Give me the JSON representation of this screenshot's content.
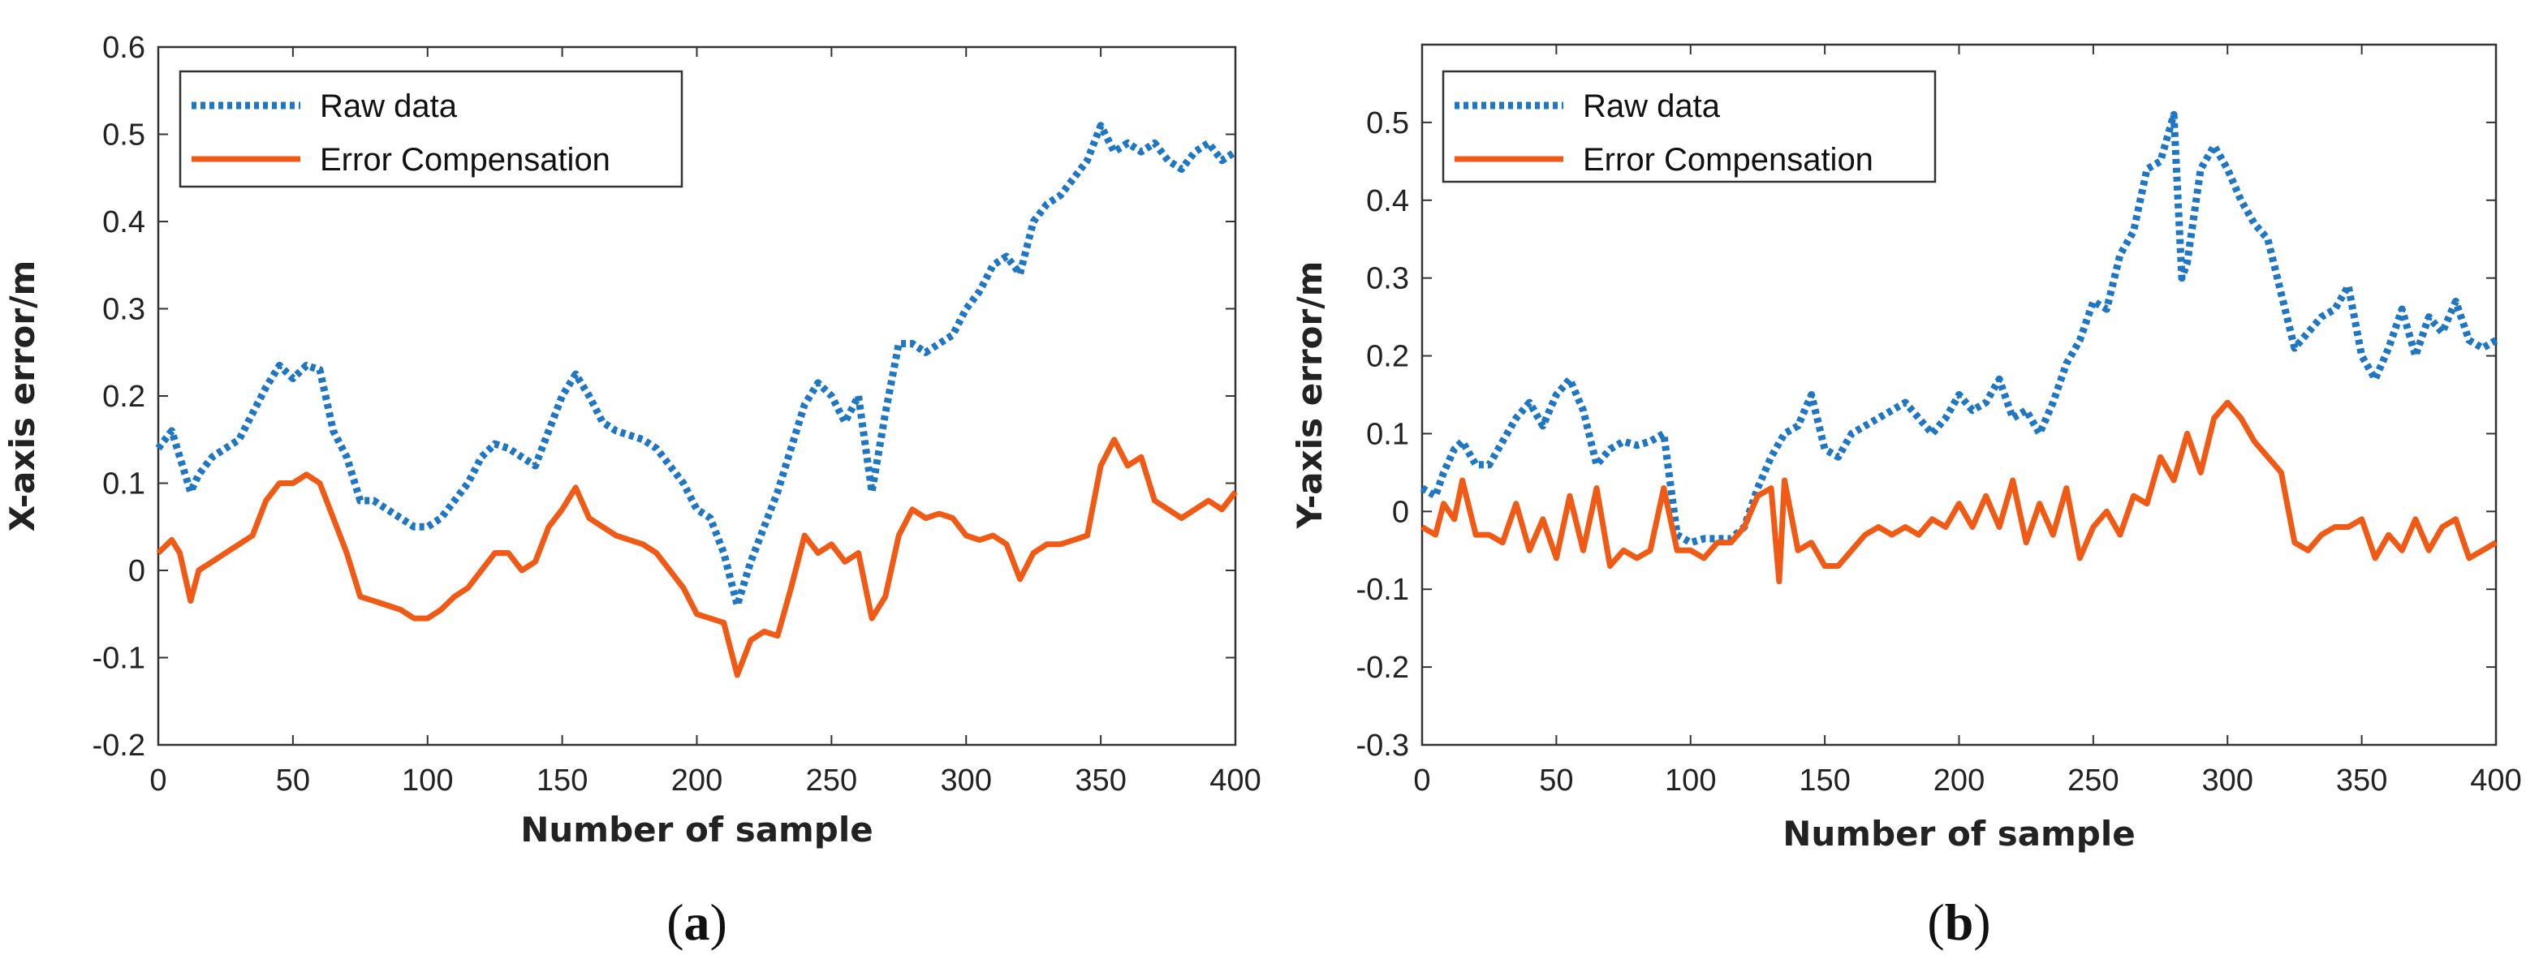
{
  "colors": {
    "raw": "#1f77c4",
    "comp": "#f05a14",
    "axis": "#333333",
    "text": "#222222"
  },
  "chart_data": [
    {
      "type": "line",
      "panel_label": {
        "open": "(",
        "letter": "a",
        "close": ")"
      },
      "xlabel": "Number of sample",
      "ylabel": "X-axis error/m",
      "xlim": [
        0,
        400
      ],
      "ylim": [
        -0.2,
        0.6
      ],
      "xticks": [
        0,
        50,
        100,
        150,
        200,
        250,
        300,
        350,
        400
      ],
      "xtick_labels": [
        "0",
        "50",
        "100",
        "150",
        "200",
        "250",
        "300",
        "350",
        "400"
      ],
      "yticks": [
        -0.2,
        -0.1,
        0,
        0.1,
        0.2,
        0.3,
        0.4,
        0.5,
        0.6
      ],
      "ytick_labels": [
        "-0.2",
        "-0.1",
        "0",
        "0.1",
        "0.2",
        "0.3",
        "0.4",
        "0.5",
        "0.6"
      ],
      "grid": false,
      "legend_position": "top-left",
      "series": [
        {
          "name": "Raw data",
          "style": "dotted",
          "x": [
            0,
            5,
            8,
            12,
            15,
            20,
            25,
            30,
            35,
            40,
            45,
            50,
            55,
            60,
            65,
            70,
            75,
            80,
            85,
            90,
            95,
            100,
            105,
            110,
            115,
            120,
            125,
            130,
            135,
            140,
            145,
            150,
            155,
            160,
            165,
            170,
            175,
            180,
            185,
            190,
            195,
            200,
            205,
            210,
            215,
            220,
            225,
            230,
            235,
            240,
            245,
            250,
            255,
            260,
            265,
            270,
            275,
            280,
            285,
            290,
            295,
            300,
            305,
            310,
            315,
            320,
            325,
            330,
            335,
            340,
            345,
            350,
            355,
            360,
            365,
            370,
            375,
            380,
            385,
            390,
            395,
            400
          ],
          "values": [
            0.14,
            0.16,
            0.13,
            0.09,
            0.11,
            0.13,
            0.14,
            0.15,
            0.18,
            0.21,
            0.235,
            0.22,
            0.235,
            0.23,
            0.16,
            0.13,
            0.08,
            0.08,
            0.07,
            0.06,
            0.05,
            0.05,
            0.06,
            0.08,
            0.1,
            0.13,
            0.145,
            0.14,
            0.13,
            0.12,
            0.16,
            0.2,
            0.225,
            0.2,
            0.17,
            0.16,
            0.155,
            0.15,
            0.14,
            0.12,
            0.1,
            0.07,
            0.06,
            0.02,
            -0.04,
            0.01,
            0.05,
            0.09,
            0.14,
            0.19,
            0.215,
            0.2,
            0.17,
            0.2,
            0.09,
            0.18,
            0.26,
            0.26,
            0.25,
            0.26,
            0.27,
            0.3,
            0.32,
            0.35,
            0.36,
            0.34,
            0.4,
            0.42,
            0.43,
            0.45,
            0.47,
            0.51,
            0.48,
            0.49,
            0.48,
            0.49,
            0.47,
            0.46,
            0.48,
            0.49,
            0.47,
            0.48
          ]
        },
        {
          "name": " Error Compensation",
          "style": "solid",
          "x": [
            0,
            5,
            8,
            12,
            15,
            20,
            25,
            30,
            35,
            40,
            45,
            50,
            55,
            60,
            65,
            70,
            75,
            80,
            85,
            90,
            95,
            100,
            105,
            110,
            115,
            120,
            125,
            130,
            135,
            140,
            145,
            150,
            155,
            160,
            165,
            170,
            175,
            180,
            185,
            190,
            195,
            200,
            205,
            210,
            215,
            220,
            225,
            230,
            235,
            240,
            245,
            250,
            255,
            260,
            265,
            270,
            275,
            280,
            285,
            290,
            295,
            300,
            305,
            310,
            315,
            320,
            325,
            330,
            335,
            340,
            345,
            350,
            355,
            360,
            365,
            370,
            375,
            380,
            385,
            390,
            395,
            400
          ],
          "values": [
            0.02,
            0.035,
            0.02,
            -0.035,
            0,
            0.01,
            0.02,
            0.03,
            0.04,
            0.08,
            0.1,
            0.1,
            0.11,
            0.1,
            0.06,
            0.02,
            -0.03,
            -0.035,
            -0.04,
            -0.045,
            -0.055,
            -0.055,
            -0.045,
            -0.03,
            -0.02,
            0,
            0.02,
            0.02,
            0,
            0.01,
            0.05,
            0.07,
            0.095,
            0.06,
            0.05,
            0.04,
            0.035,
            0.03,
            0.02,
            0,
            -0.02,
            -0.05,
            -0.055,
            -0.06,
            -0.12,
            -0.08,
            -0.07,
            -0.075,
            -0.02,
            0.04,
            0.02,
            0.03,
            0.01,
            0.02,
            -0.055,
            -0.03,
            0.04,
            0.07,
            0.06,
            0.065,
            0.06,
            0.04,
            0.035,
            0.04,
            0.03,
            -0.01,
            0.02,
            0.03,
            0.03,
            0.035,
            0.04,
            0.12,
            0.15,
            0.12,
            0.13,
            0.08,
            0.07,
            0.06,
            0.07,
            0.08,
            0.07,
            0.09
          ]
        }
      ]
    },
    {
      "type": "line",
      "panel_label": {
        "open": "(",
        "letter": "b",
        "close": ")"
      },
      "xlabel": "Number of sample",
      "ylabel": "Y-axis error/m",
      "xlim": [
        0,
        400
      ],
      "ylim": [
        -0.3,
        0.6
      ],
      "xticks": [
        0,
        50,
        100,
        150,
        200,
        250,
        300,
        350,
        400
      ],
      "xtick_labels": [
        "0",
        "50",
        "100",
        "150",
        "200",
        "250",
        "300",
        "350",
        "400"
      ],
      "yticks": [
        -0.3,
        -0.2,
        -0.1,
        0,
        0.1,
        0.2,
        0.3,
        0.4,
        0.5
      ],
      "ytick_labels": [
        "-0.3",
        "-0.2",
        "-0.1",
        "0",
        "0.1",
        "0.2",
        "0.3",
        "0.4",
        "0.5"
      ],
      "grid": false,
      "legend_position": "top-left",
      "series": [
        {
          "name": "Raw data",
          "style": "dotted",
          "x": [
            0,
            5,
            8,
            12,
            15,
            20,
            25,
            30,
            35,
            40,
            45,
            50,
            55,
            60,
            65,
            70,
            75,
            80,
            85,
            90,
            95,
            100,
            105,
            110,
            115,
            120,
            125,
            130,
            135,
            140,
            145,
            150,
            155,
            160,
            165,
            170,
            175,
            180,
            185,
            190,
            195,
            200,
            205,
            210,
            215,
            220,
            225,
            230,
            235,
            240,
            245,
            250,
            255,
            260,
            265,
            270,
            275,
            280,
            283,
            285,
            290,
            295,
            300,
            305,
            310,
            315,
            320,
            325,
            330,
            335,
            340,
            345,
            350,
            355,
            360,
            365,
            370,
            375,
            380,
            385,
            390,
            395,
            400
          ],
          "values": [
            0.03,
            0.02,
            0.05,
            0.08,
            0.09,
            0.06,
            0.06,
            0.09,
            0.12,
            0.14,
            0.11,
            0.15,
            0.17,
            0.13,
            0.06,
            0.08,
            0.09,
            0.085,
            0.09,
            0.1,
            -0.03,
            -0.04,
            -0.035,
            -0.035,
            -0.035,
            -0.02,
            0.03,
            0.07,
            0.1,
            0.11,
            0.15,
            0.08,
            0.07,
            0.1,
            0.11,
            0.12,
            0.13,
            0.14,
            0.12,
            0.1,
            0.12,
            0.15,
            0.13,
            0.14,
            0.17,
            0.12,
            0.13,
            0.1,
            0.14,
            0.19,
            0.22,
            0.27,
            0.26,
            0.33,
            0.36,
            0.44,
            0.45,
            0.51,
            0.3,
            0.32,
            0.44,
            0.47,
            0.44,
            0.4,
            0.37,
            0.35,
            0.28,
            0.21,
            0.23,
            0.25,
            0.26,
            0.29,
            0.2,
            0.17,
            0.21,
            0.26,
            0.2,
            0.25,
            0.23,
            0.27,
            0.22,
            0.21,
            0.22
          ]
        },
        {
          "name": "Error Compensation",
          "style": "solid",
          "x": [
            0,
            5,
            8,
            12,
            15,
            20,
            25,
            30,
            35,
            40,
            45,
            50,
            55,
            60,
            65,
            70,
            75,
            80,
            85,
            90,
            95,
            100,
            105,
            110,
            115,
            120,
            125,
            130,
            133,
            135,
            140,
            145,
            150,
            155,
            160,
            165,
            170,
            175,
            180,
            185,
            190,
            195,
            200,
            205,
            210,
            215,
            220,
            225,
            230,
            235,
            240,
            245,
            250,
            255,
            260,
            265,
            270,
            275,
            280,
            285,
            290,
            295,
            300,
            305,
            310,
            315,
            320,
            325,
            330,
            335,
            340,
            345,
            350,
            355,
            360,
            365,
            370,
            375,
            380,
            385,
            390,
            395,
            400
          ],
          "values": [
            -0.02,
            -0.03,
            0.01,
            -0.01,
            0.04,
            -0.03,
            -0.03,
            -0.04,
            0.01,
            -0.05,
            -0.01,
            -0.06,
            0.02,
            -0.05,
            0.03,
            -0.07,
            -0.05,
            -0.06,
            -0.05,
            0.03,
            -0.05,
            -0.05,
            -0.06,
            -0.04,
            -0.04,
            -0.02,
            0.02,
            0.03,
            -0.09,
            0.04,
            -0.05,
            -0.04,
            -0.07,
            -0.07,
            -0.05,
            -0.03,
            -0.02,
            -0.03,
            -0.02,
            -0.03,
            -0.01,
            -0.02,
            0.01,
            -0.02,
            0.02,
            -0.02,
            0.04,
            -0.04,
            0.01,
            -0.03,
            0.03,
            -0.06,
            -0.02,
            0,
            -0.03,
            0.02,
            0.01,
            0.07,
            0.04,
            0.1,
            0.05,
            0.12,
            0.14,
            0.12,
            0.09,
            0.07,
            0.05,
            -0.04,
            -0.05,
            -0.03,
            -0.02,
            -0.02,
            -0.01,
            -0.06,
            -0.03,
            -0.05,
            -0.01,
            -0.05,
            -0.02,
            -0.01,
            -0.06,
            -0.05,
            -0.04
          ]
        }
      ]
    }
  ]
}
